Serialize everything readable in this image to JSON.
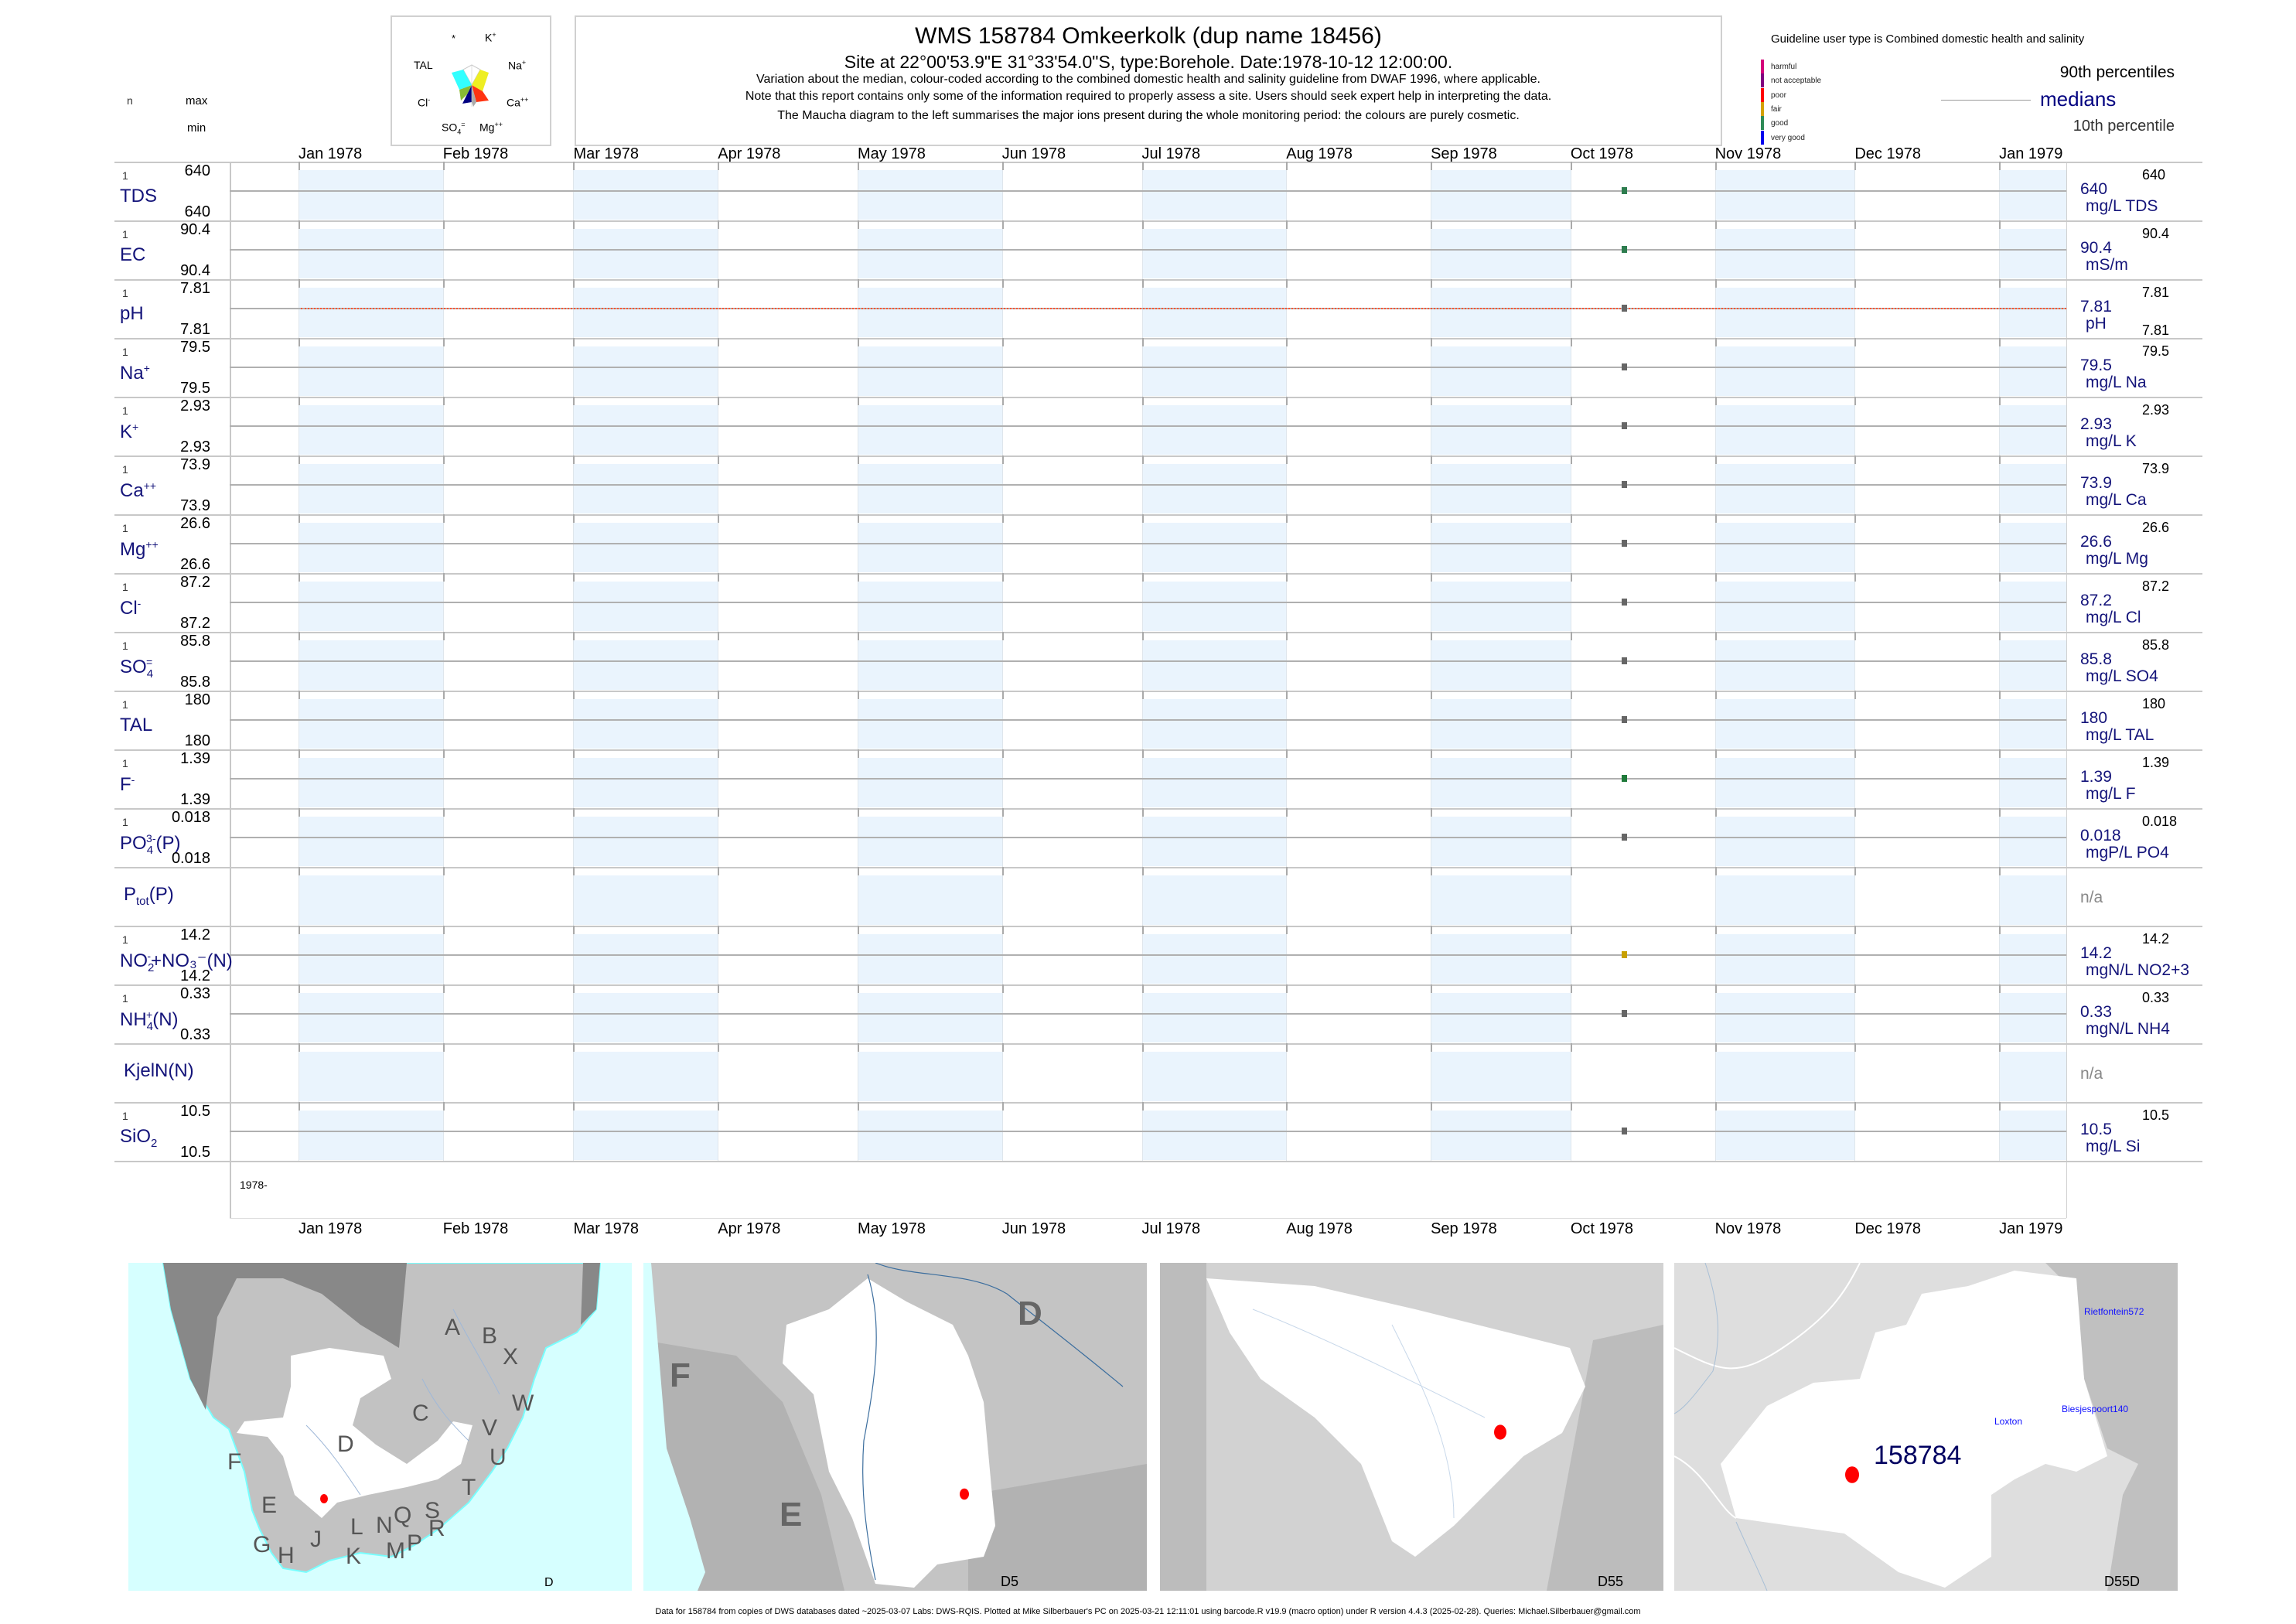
{
  "header": {
    "col_n": "n",
    "col_max": "max",
    "col_min": "min",
    "title": "WMS 158784  Omkeerkolk (dup name 18456)",
    "site": "Site at 22°00'53.9\"E 31°33'54.0\"S, type:Borehole. Date:1978-10-12 12:00:00.",
    "note1": "Variation about the median,  colour-coded according to the combined domestic health and salinity guideline from DWAF 1996, where applicable.",
    "note2": "Note that this report contains only some of the information required to properly assess a site. Users should seek expert help in interpreting the data.",
    "note3": "The Maucha diagram to the left summarises the major ions present during the whole monitoring period: the colours are purely cosmetic."
  },
  "maucha": {
    "labels": {
      "star": "*",
      "k": "K",
      "k_sup": "+",
      "tal": "TAL",
      "na": "Na",
      "na_sup": "+",
      "cl": "Cl",
      "cl_sup": "-",
      "ca": "Ca",
      "ca_sup": "++",
      "so4": "SO",
      "so4_sub": "4",
      "so4_sup": "=",
      "mg": "Mg",
      "mg_sup": "++"
    },
    "colors": {
      "tal": "#33ffff",
      "na": "#eeee22",
      "ca": "#ff3311",
      "mg": "#aaaaaa",
      "so4": "#000080",
      "cl": "#88bb33"
    }
  },
  "legend": {
    "guideline": "Guideline user type is Combined domestic health and salinity",
    "classes": [
      {
        "label": "harmful",
        "color": "#d4007a"
      },
      {
        "label": "not acceptable",
        "color": "#800080"
      },
      {
        "label": "poor",
        "color": "#ff0000"
      },
      {
        "label": "fair",
        "color": "#d4a000"
      },
      {
        "label": "good",
        "color": "#2e8b57"
      },
      {
        "label": "very good",
        "color": "#0000ee"
      }
    ],
    "p90": "90th percentiles",
    "medians": "medians",
    "p10": "10th percentile"
  },
  "chart_data": {
    "type": "scatter",
    "x_ticks": [
      "Jan 1978",
      "Feb 1978",
      "Mar 1978",
      "Apr 1978",
      "May 1978",
      "Jun 1978",
      "Jul 1978",
      "Aug 1978",
      "Sep 1978",
      "Oct 1978",
      "Nov 1978",
      "Dec 1978",
      "Jan 1979"
    ],
    "x_range": [
      "1977-11-17",
      "1979-01-15"
    ],
    "year_label": "1978-",
    "sample_date": "1978-10-12",
    "grid": true,
    "series": [
      {
        "label": "TDS",
        "sup": "",
        "sub": "",
        "suffix": "",
        "n": "1",
        "max": "640",
        "min": "640",
        "median": "640",
        "unit": "mg/L TDS",
        "rmax": "640",
        "rmin": "",
        "value": 640,
        "color": "#2e7d4f"
      },
      {
        "label": "EC",
        "sup": "",
        "sub": "",
        "suffix": "",
        "n": "1",
        "max": "90.4",
        "min": "90.4",
        "median": "90.4",
        "unit": "mS/m",
        "rmax": "90.4",
        "rmin": "",
        "value": 90.4,
        "color": "#2e7d4f"
      },
      {
        "label": "pH",
        "sup": "",
        "sub": "",
        "suffix": "",
        "n": "1",
        "max": "7.81",
        "min": "7.81",
        "median": "7.81",
        "unit": "pH",
        "rmax": "7.81",
        "rmin": "7.81",
        "value": 7.81,
        "color": "#666666",
        "guide_color": "#ff5533"
      },
      {
        "label": "Na",
        "sup": "+",
        "sub": "",
        "suffix": "",
        "n": "1",
        "max": "79.5",
        "min": "79.5",
        "median": "79.5",
        "unit": "mg/L Na",
        "rmax": "79.5",
        "rmin": "",
        "value": 79.5,
        "color": "#666666"
      },
      {
        "label": "K",
        "sup": "+",
        "sub": "",
        "suffix": "",
        "n": "1",
        "max": "2.93",
        "min": "2.93",
        "median": "2.93",
        "unit": "mg/L K",
        "rmax": "2.93",
        "rmin": "",
        "value": 2.93,
        "color": "#666666"
      },
      {
        "label": "Ca",
        "sup": "++",
        "sub": "",
        "suffix": "",
        "n": "1",
        "max": "73.9",
        "min": "73.9",
        "median": "73.9",
        "unit": "mg/L Ca",
        "rmax": "73.9",
        "rmin": "",
        "value": 73.9,
        "color": "#666666"
      },
      {
        "label": "Mg",
        "sup": "++",
        "sub": "",
        "suffix": "",
        "n": "1",
        "max": "26.6",
        "min": "26.6",
        "median": "26.6",
        "unit": "mg/L Mg",
        "rmax": "26.6",
        "rmin": "",
        "value": 26.6,
        "color": "#666666"
      },
      {
        "label": "Cl",
        "sup": "-",
        "sub": "",
        "suffix": "",
        "n": "1",
        "max": "87.2",
        "min": "87.2",
        "median": "87.2",
        "unit": "mg/L Cl",
        "rmax": "87.2",
        "rmin": "",
        "value": 87.2,
        "color": "#666666"
      },
      {
        "label": "SO",
        "sup": "=",
        "sub": "4",
        "suffix": "",
        "n": "1",
        "max": "85.8",
        "min": "85.8",
        "median": "85.8",
        "unit": "mg/L SO4",
        "rmax": "85.8",
        "rmin": "",
        "value": 85.8,
        "color": "#666666"
      },
      {
        "label": "TAL",
        "sup": "",
        "sub": "",
        "suffix": "",
        "n": "1",
        "max": "180",
        "min": "180",
        "median": "180",
        "unit": "mg/L TAL",
        "rmax": "180",
        "rmin": "",
        "value": 180,
        "color": "#666666"
      },
      {
        "label": "F",
        "sup": "-",
        "sub": "",
        "suffix": "",
        "n": "1",
        "max": "1.39",
        "min": "1.39",
        "median": "1.39",
        "unit": "mg/L F",
        "rmax": "1.39",
        "rmin": "",
        "value": 1.39,
        "color": "#1f7a3a"
      },
      {
        "label": "PO",
        "sup": "3-",
        "sub": "4",
        "suffix": "(P)",
        "n": "1",
        "max": "0.018",
        "min": "0.018",
        "median": "0.018",
        "unit": "mgP/L PO4",
        "rmax": "0.018",
        "rmin": "",
        "value": 0.018,
        "color": "#666666"
      },
      {
        "label": "P",
        "sup": "",
        "sub": "tot",
        "suffix": "(P)",
        "n": "",
        "max": "",
        "min": "",
        "median": "n/a",
        "unit": "",
        "rmax": "",
        "rmin": "",
        "value": null,
        "color": ""
      },
      {
        "label": "NO",
        "sup": "-",
        "sub": "2",
        "suffix": "+NO₃⁻(N)",
        "n": "1",
        "max": "14.2",
        "min": "14.2",
        "median": "14.2",
        "unit": "mgN/L NO2+3",
        "rmax": "14.2",
        "rmin": "",
        "value": 14.2,
        "color": "#c8a000"
      },
      {
        "label": "NH",
        "sup": "+",
        "sub": "4",
        "suffix": "(N)",
        "n": "1",
        "max": "0.33",
        "min": "0.33",
        "median": "0.33",
        "unit": "mgN/L NH4",
        "rmax": "0.33",
        "rmin": "",
        "value": 0.33,
        "color": "#666666"
      },
      {
        "label": "KjelN(N)",
        "sup": "",
        "sub": "",
        "suffix": "",
        "n": "",
        "max": "",
        "min": "",
        "median": "n/a",
        "unit": "",
        "rmax": "",
        "rmin": "",
        "value": null,
        "color": ""
      },
      {
        "label": "SiO",
        "sup": "",
        "sub": "2",
        "suffix": "",
        "n": "1",
        "max": "10.5",
        "min": "10.5",
        "median": "10.5",
        "unit": "mg/L Si",
        "rmax": "10.5",
        "rmin": "",
        "value": 10.5,
        "color": "#666666"
      }
    ]
  },
  "maps": {
    "map1": {
      "letters": [
        "A",
        "B",
        "X",
        "C",
        "W",
        "V",
        "U",
        "D",
        "F",
        "T",
        "E",
        "S",
        "Q",
        "N",
        "R",
        "L",
        "G",
        "J",
        "P",
        "H",
        "K",
        "M"
      ],
      "corner": "D"
    },
    "map2": {
      "letters": [
        "F",
        "D",
        "E"
      ],
      "corner": "D5"
    },
    "map3": {
      "corner": "D55"
    },
    "map4": {
      "site": "158784",
      "places": [
        "Rietfontein572",
        "Biesjespoort140",
        "Loxton"
      ],
      "corner": "D55D"
    }
  },
  "footer": "Data for 158784 from copies of DWS databases dated ~2025-03-07 Labs: DWS-RQIS. Plotted at Mike Silberbauer's PC on 2025-03-21 12:11:01 using barcode.R v19.9 (macro option) under R version 4.4.3 (2025-02-28). Queries: Michael.Silberbauer@gmail.com"
}
